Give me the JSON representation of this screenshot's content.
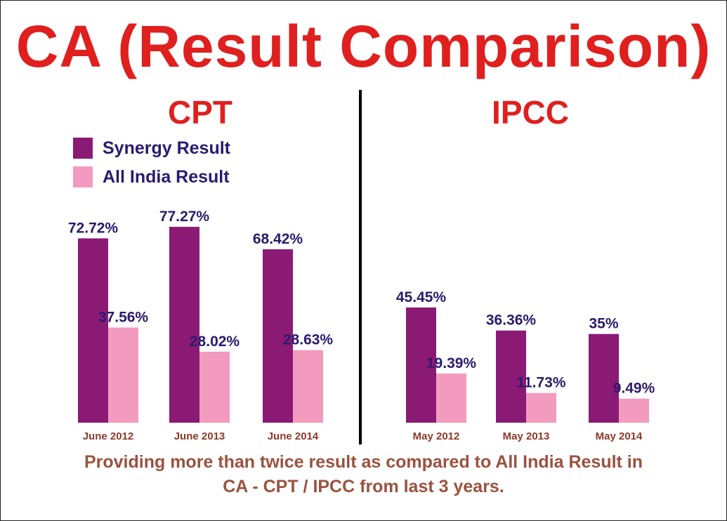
{
  "title": "CA (Result Comparison)",
  "chart_data": [
    {
      "type": "bar",
      "title": "CPT",
      "categories": [
        "June 2012",
        "June 2013",
        "June 2014"
      ],
      "series": [
        {
          "name": "Synergy Result",
          "values": [
            72.72,
            77.27,
            68.42
          ],
          "labels": [
            "72.72%",
            "77.27%",
            "68.42%"
          ]
        },
        {
          "name": "All India Result",
          "values": [
            37.56,
            28.02,
            28.63
          ],
          "labels": [
            "37.56%",
            "28.02%",
            "28.63%"
          ]
        }
      ],
      "ylim": [
        0,
        100
      ],
      "grid": false,
      "legend": "top-left"
    },
    {
      "type": "bar",
      "title": "IPCC",
      "categories": [
        "May 2012",
        "May 2013",
        "May 2014"
      ],
      "series": [
        {
          "name": "Synergy Result",
          "values": [
            45.45,
            36.36,
            35
          ],
          "labels": [
            "45.45%",
            "36.36%",
            "35%"
          ]
        },
        {
          "name": "All India Result",
          "values": [
            19.39,
            11.73,
            9.49
          ],
          "labels": [
            "19.39%",
            "11.73%",
            "9.49%"
          ]
        }
      ],
      "ylim": [
        0,
        100
      ],
      "grid": false
    }
  ],
  "legend": [
    {
      "label": "Synergy Result",
      "color": "#8b1a75"
    },
    {
      "label": "All India Result",
      "color": "#f29bbf"
    }
  ],
  "colors": {
    "title": "#e01f1f",
    "value_label": "#2a1b6e",
    "category_label": "#8a3a2a",
    "footer": "#9a5240",
    "synergy": "#8b1a75",
    "all_india": "#f29bbf"
  },
  "footer": {
    "line1": "Providing more than twice result as compared to All India Result in",
    "line2": "CA - CPT / IPCC from last 3 years."
  }
}
